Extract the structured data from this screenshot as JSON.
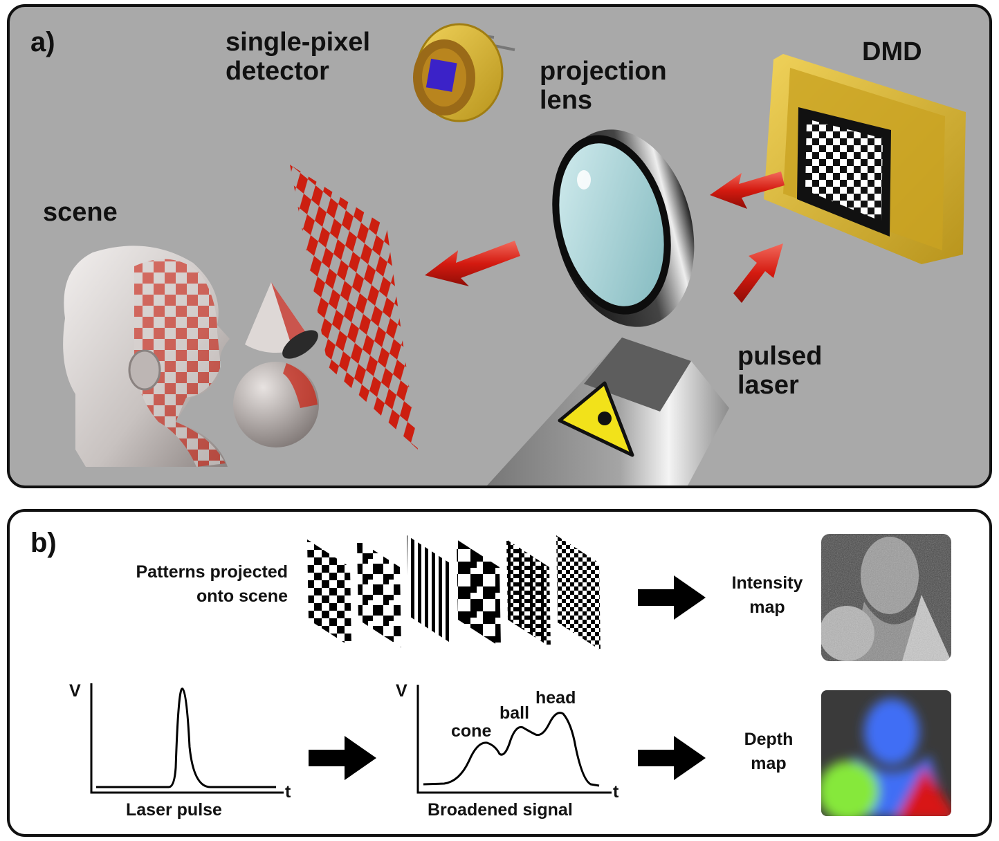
{
  "panel_a": {
    "letter": "a)",
    "labels": {
      "detector": "single-pixel\ndetector",
      "lens": "projection\nlens",
      "dmd": "DMD",
      "scene": "scene",
      "laser": "pulsed\nlaser"
    }
  },
  "panel_b": {
    "letter": "b)",
    "patterns_label": "Patterns projected\nonto scene",
    "intensity_label": "Intensity\nmap",
    "depth_label": "Depth\nmap",
    "laser_plot": {
      "y_axis": "V",
      "x_axis": "t",
      "caption": "Laser pulse"
    },
    "signal_plot": {
      "y_axis": "V",
      "x_axis": "t",
      "caption": "Broadened signal",
      "peaks": [
        "cone",
        "ball",
        "head"
      ]
    }
  },
  "colors": {
    "panel_a_bg": "#a9a9a9",
    "pattern_red": "#cc1f10",
    "arrow_red": "#d41a10",
    "dmd_gold": "#d9b52a",
    "depth_blue": "#3f6ef5",
    "depth_green": "#86e83a",
    "depth_red": "#d81414"
  }
}
